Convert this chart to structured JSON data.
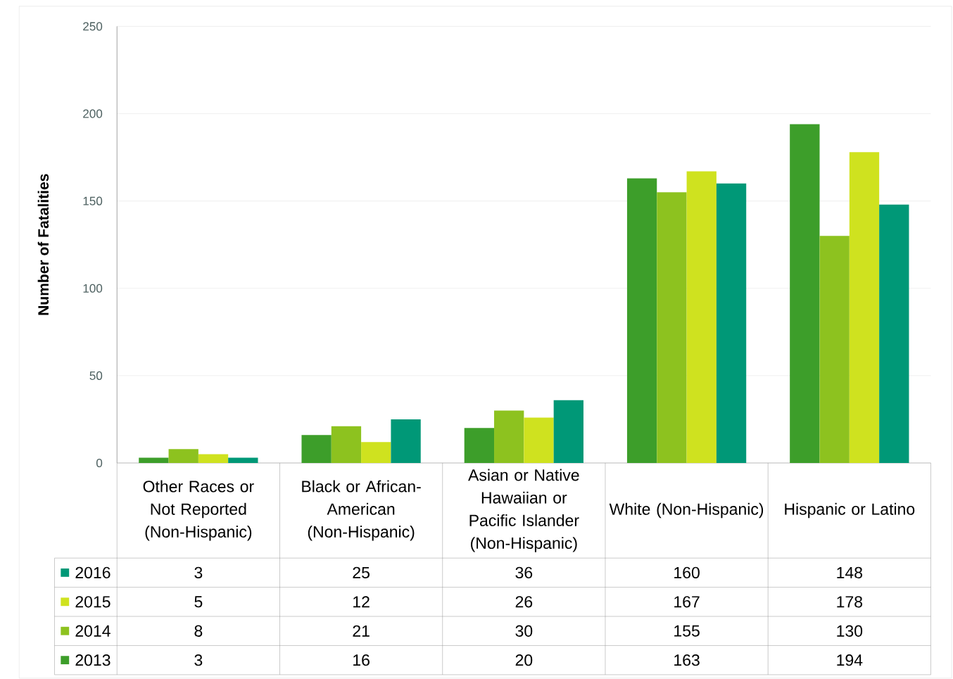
{
  "chart_data": {
    "type": "bar",
    "ylabel": "Number of Fatalities",
    "categories": [
      "Other Races or Not Reported (Non-Hispanic)",
      "Black or African-American (Non-Hispanic)",
      "Asian or Native Hawaiian or Pacific Islander (Non-Hispanic)",
      "White (Non-Hispanic)",
      "Hispanic or Latino"
    ],
    "series": [
      {
        "name": "2013",
        "color": "#3d9e2a",
        "values": [
          3,
          16,
          20,
          163,
          194
        ]
      },
      {
        "name": "2014",
        "color": "#8dc21f",
        "values": [
          8,
          21,
          30,
          155,
          130
        ]
      },
      {
        "name": "2015",
        "color": "#cfe21f",
        "values": [
          5,
          12,
          26,
          167,
          178
        ]
      },
      {
        "name": "2016",
        "color": "#009877",
        "values": [
          3,
          25,
          36,
          160,
          148
        ]
      }
    ],
    "ylim": [
      0,
      250
    ],
    "yticks": [
      0,
      50,
      100,
      150,
      200,
      250
    ],
    "grid": "y",
    "legend": "bottom left",
    "data_labels": true
  }
}
